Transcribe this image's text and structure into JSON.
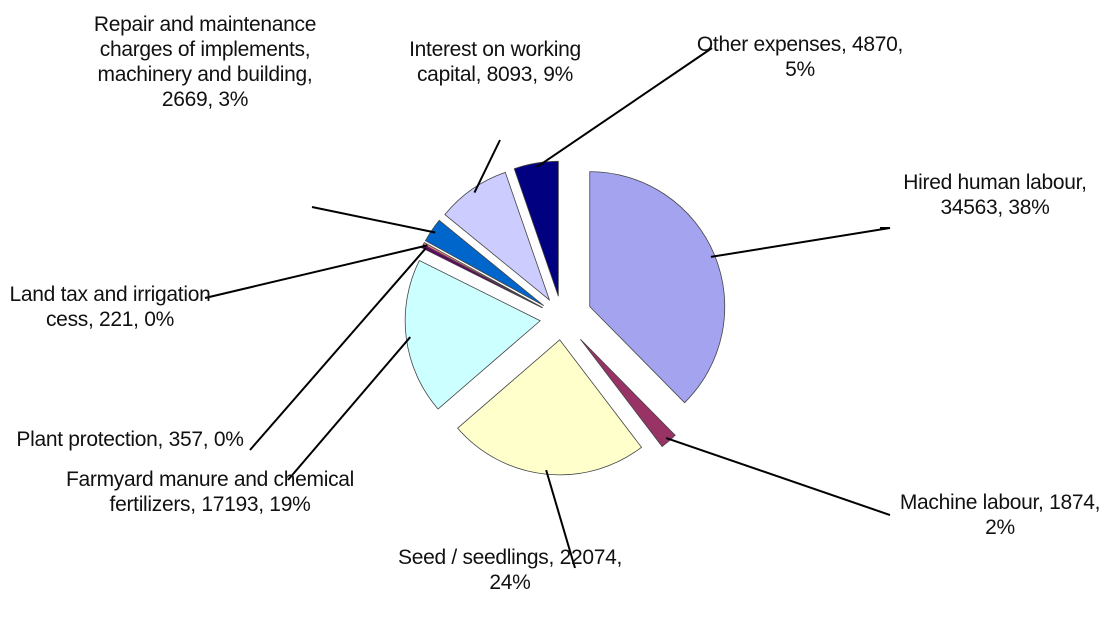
{
  "chart_data": {
    "type": "pie",
    "categories": [
      "Hired human labour",
      "Machine labour",
      "Seed / seedlings",
      "Farmyard manure and chemical fertilizers",
      "Plant protection",
      "Land tax and irrigation cess",
      "Repair and maintenance charges of implements, machinery and building",
      "Interest on working capital",
      "Other expenses"
    ],
    "values": [
      34563,
      1874,
      22074,
      17193,
      357,
      221,
      2669,
      8093,
      4870
    ],
    "value_labels": [
      "34563, 38%",
      "1874, 2%",
      "22074, 24%",
      "17193, 19%",
      "357, 0%",
      "221, 0%",
      "2669, 3%",
      "8093, 9%",
      "4870, 5%"
    ],
    "colors": [
      "#a3a3f0",
      "#993366",
      "#ffffcc",
      "#ccffff",
      "#660066",
      "#ff8080",
      "#0066cc",
      "#ccccff",
      "#000080"
    ]
  }
}
